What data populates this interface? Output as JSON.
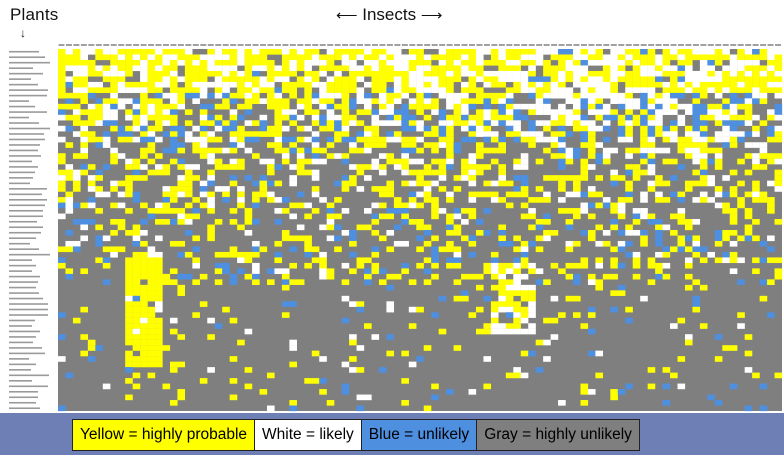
{
  "labels": {
    "plants": "Plants",
    "insects": "Insects"
  },
  "legend": [
    {
      "name": "yellow",
      "text": "Yellow = highly probable",
      "color": "#ffff00",
      "text_color": "#000000"
    },
    {
      "name": "white",
      "text": "White = likely",
      "color": "#ffffff",
      "text_color": "#000000"
    },
    {
      "name": "blue",
      "text": "Blue = unlikely",
      "color": "#4e8fe0",
      "text_color": "#000000"
    },
    {
      "name": "gray",
      "text": "Gray = highly unlikely",
      "color": "#7f7f7f",
      "text_color": "#000000"
    }
  ],
  "chart_data": {
    "type": "heatmap",
    "n_rows": 66,
    "n_cols": 97,
    "row_labels_legible": false,
    "col_labels_legible": false,
    "categories": [
      "highly probable",
      "likely",
      "unlikely",
      "highly unlikely"
    ],
    "colors": {
      "highly probable": "#ffff00",
      "likely": "#ffffff",
      "unlikely": "#4e8fe0",
      "highly unlikely": "#7f7f7f"
    },
    "approx_share": {
      "highly probable": 0.22,
      "likely": 0.14,
      "unlikely": 0.06,
      "highly unlikely": 0.58
    }
  }
}
